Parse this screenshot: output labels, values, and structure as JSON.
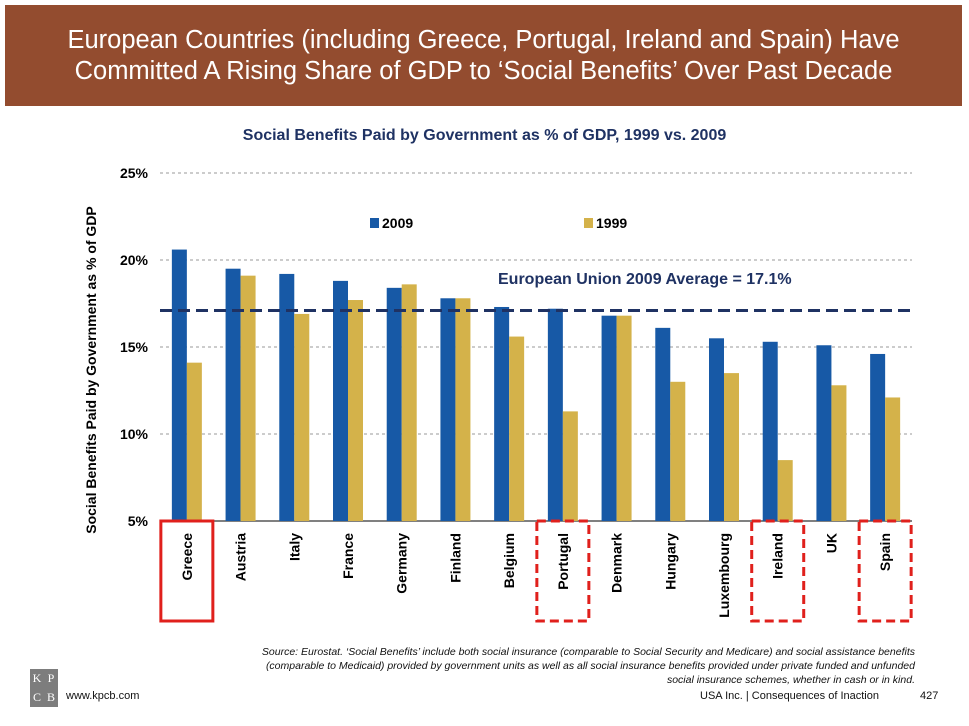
{
  "slide": {
    "title": "European Countries (including Greece, Portugal, Ireland and Spain) Have Committed A Rising Share of GDP to ‘Social Benefits’ Over Past Decade",
    "source": "Source: Eurostat. ‘Social Benefits’  include both social insurance (comparable to  Social Security and Medicare) and social assistance benefits (comparable to Medicaid)  provided by government units as well as all social insurance benefits provided under private funded and unfunded social insurance schemes, whether in cash or in kind.",
    "logo": [
      "K",
      "P",
      "C",
      "B"
    ],
    "website": "www.kpcb.com",
    "footer": "USA Inc. | Consequences of Inaction",
    "page_number": "427"
  },
  "chart_data": {
    "type": "bar",
    "title": "Social Benefits Paid by Government as % of GDP, 1999 vs. 2009",
    "ylabel": "Social Benefits Paid by Government as % of GDP",
    "xlabel": "",
    "ylim": [
      5,
      25
    ],
    "yticks": [
      "5%",
      "10%",
      "15%",
      "20%",
      "25%"
    ],
    "grid": true,
    "legend_position": "top",
    "categories": [
      "Greece",
      "Austria",
      "Italy",
      "France",
      "Germany",
      "Finland",
      "Belgium",
      "Portugal",
      "Denmark",
      "Hungary",
      "Luxembourg",
      "Ireland",
      "UK",
      "Spain"
    ],
    "series": [
      {
        "name": "2009",
        "color": "#1759a6",
        "values": [
          20.6,
          19.5,
          19.2,
          18.8,
          18.4,
          17.8,
          17.3,
          17.2,
          16.8,
          16.1,
          15.5,
          15.3,
          15.1,
          14.6
        ]
      },
      {
        "name": "1999",
        "color": "#d4b24a",
        "values": [
          14.1,
          19.1,
          16.9,
          17.7,
          18.6,
          17.8,
          15.6,
          11.3,
          16.8,
          13.0,
          13.5,
          8.5,
          12.8,
          12.1
        ]
      }
    ],
    "reference_line": {
      "value": 17.1,
      "label": "European Union 2009 Average = 17.1%"
    },
    "highlighted": [
      {
        "category": "Greece",
        "style": "solid"
      },
      {
        "category": "Portugal",
        "style": "dashed"
      },
      {
        "category": "Ireland",
        "style": "dashed"
      },
      {
        "category": "Spain",
        "style": "dashed"
      }
    ]
  }
}
